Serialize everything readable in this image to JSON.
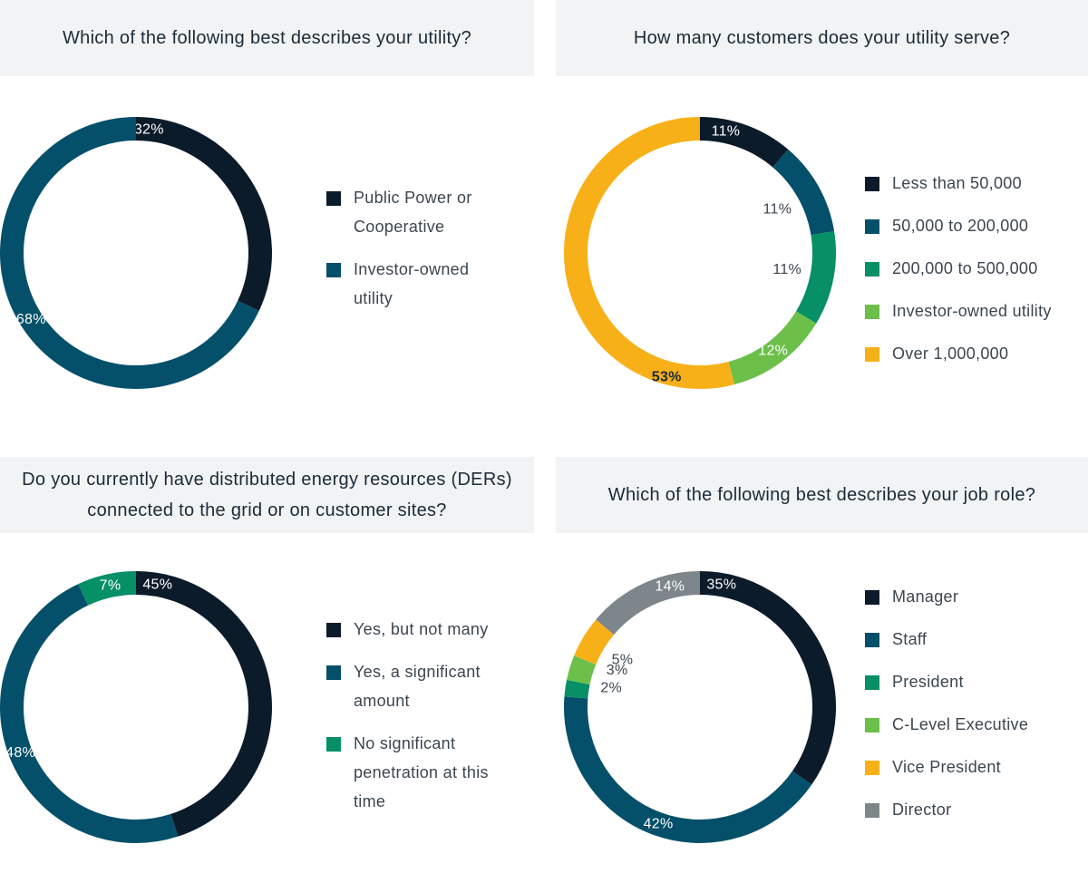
{
  "colors": {
    "navy": "#0c1b2a",
    "teal": "#04506a",
    "green": "#078f66",
    "lightgreen": "#6cc04a",
    "yellow": "#f8b019",
    "gray": "#7d868b"
  },
  "chart_data": [
    {
      "type": "pie",
      "title": "Which of the following best describes your utility?",
      "categories": [
        "Public Power or Cooperative",
        "Investor-owned utility"
      ],
      "values": [
        32,
        68
      ],
      "labels": [
        "32%",
        "68%"
      ],
      "colors": [
        "#0c1b2a",
        "#04506a"
      ],
      "legend_lines": [
        [
          "Public Power or",
          "Cooperative"
        ],
        [
          "Investor-owned",
          "utility"
        ]
      ]
    },
    {
      "type": "pie",
      "title": "How many customers does your utility serve?",
      "categories": [
        "Less than 50,000",
        "50,000 to 200,000",
        "200,000 to 500,000",
        "Investor-owned utility",
        "Over 1,000,000"
      ],
      "values": [
        11,
        11,
        11,
        12,
        53
      ],
      "labels": [
        "11%",
        "11%",
        "11%",
        "12%",
        "53%"
      ],
      "colors": [
        "#0c1b2a",
        "#04506a",
        "#078f66",
        "#6cc04a",
        "#f8b019"
      ],
      "legend_lines": [
        [
          "Less than 50,000"
        ],
        [
          "50,000 to 200,000"
        ],
        [
          "200,000 to 500,000"
        ],
        [
          "Investor-owned utility"
        ],
        [
          "Over 1,000,000"
        ]
      ]
    },
    {
      "type": "pie",
      "title": "Do you currently have distributed energy resources (DERs) connected to the grid or on customer sites?",
      "categories": [
        "Yes, but not many",
        "Yes, a significant amount",
        "No significant penetration at this time"
      ],
      "values": [
        45,
        48,
        7
      ],
      "labels": [
        "45%",
        "48%",
        "7%"
      ],
      "colors": [
        "#0c1b2a",
        "#04506a",
        "#078f66"
      ],
      "legend_lines": [
        [
          "Yes, but not many"
        ],
        [
          "Yes, a significant",
          "amount"
        ],
        [
          "No significant",
          "penetration at this",
          "time"
        ]
      ]
    },
    {
      "type": "pie",
      "title": "Which of the following best describes your job role?",
      "categories": [
        "Manager",
        "Staff",
        "President",
        "C-Level Executive",
        "Vice President",
        "Director"
      ],
      "values": [
        35,
        42,
        2,
        3,
        5,
        14
      ],
      "labels": [
        "35%",
        "42%",
        "2%",
        "3%",
        "5%",
        "14%"
      ],
      "colors": [
        "#0c1b2a",
        "#04506a",
        "#078f66",
        "#6cc04a",
        "#f8b019",
        "#7d868b"
      ],
      "legend_lines": [
        [
          "Manager"
        ],
        [
          "Staff"
        ],
        [
          "President"
        ],
        [
          "C-Level Executive"
        ],
        [
          "Vice President"
        ],
        [
          "Director"
        ]
      ]
    }
  ]
}
